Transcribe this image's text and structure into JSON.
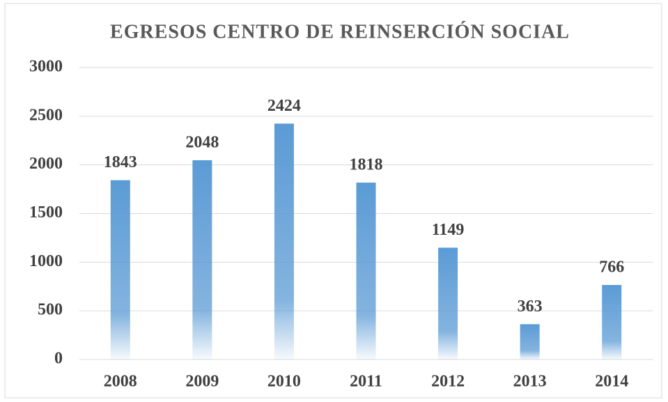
{
  "chart_data": {
    "type": "bar",
    "title": "EGRESOS CENTRO DE REINSERCIÓN SOCIAL",
    "categories": [
      "2008",
      "2009",
      "2010",
      "2011",
      "2012",
      "2013",
      "2014"
    ],
    "values": [
      1843,
      2048,
      2424,
      1818,
      1149,
      363,
      766
    ],
    "color": "#5b9bd5",
    "ylim": [
      0,
      3000
    ],
    "yticks": [
      0,
      500,
      1000,
      1500,
      2000,
      2500,
      3000
    ],
    "grid": true
  }
}
